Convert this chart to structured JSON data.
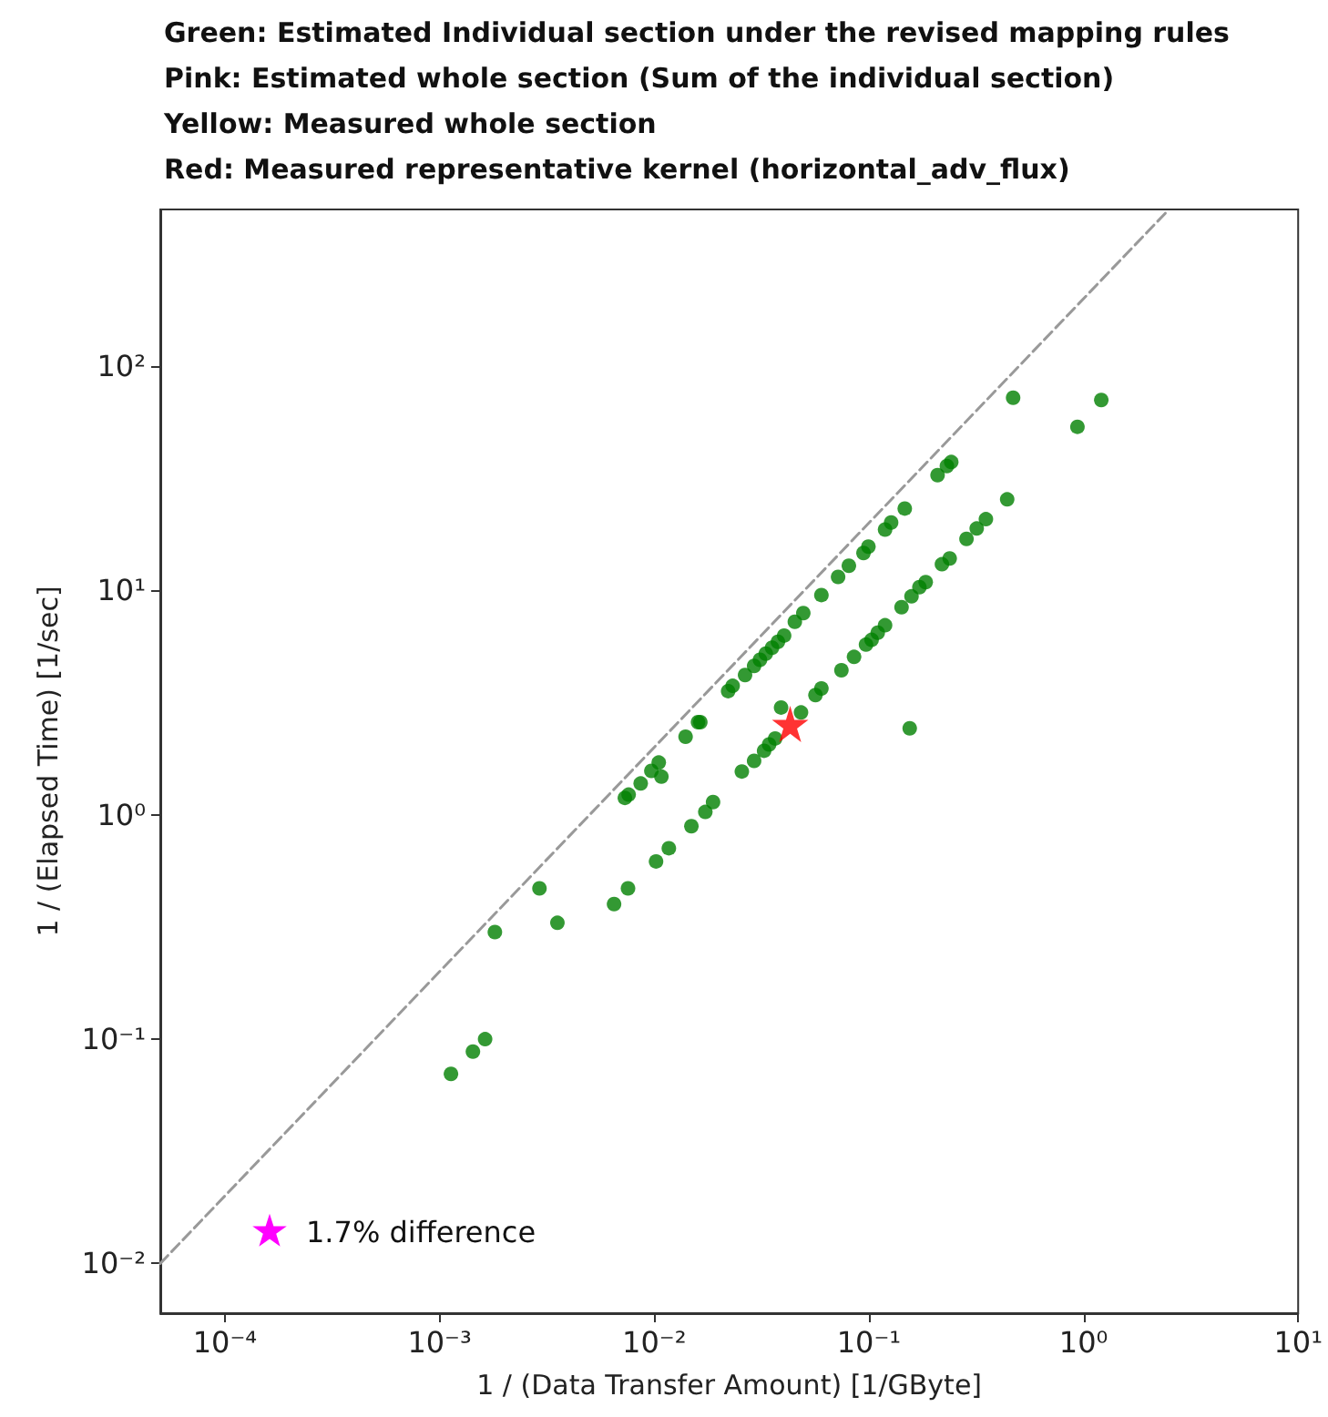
{
  "chart_data": {
    "type": "scatter",
    "xlabel": "1 / (Data Transfer Amount) [1/GByte]",
    "ylabel": "1 / (Elapsed Time) [1/sec]",
    "log": "xy",
    "xlim": [
      5e-05,
      10
    ],
    "ylim": [
      0.006,
      500
    ],
    "xticks": [
      {
        "value": 0.0001,
        "label": "10⁻⁴"
      },
      {
        "value": 0.001,
        "label": "10⁻³"
      },
      {
        "value": 0.01,
        "label": "10⁻²"
      },
      {
        "value": 0.1,
        "label": "10⁻¹"
      },
      {
        "value": 1,
        "label": "10⁰"
      },
      {
        "value": 10,
        "label": "10¹"
      }
    ],
    "yticks": [
      {
        "value": 0.01,
        "label": "10⁻²"
      },
      {
        "value": 0.1,
        "label": "10⁻¹"
      },
      {
        "value": 1,
        "label": "10⁰"
      },
      {
        "value": 10,
        "label": "10¹"
      },
      {
        "value": 100,
        "label": "10²"
      }
    ],
    "annotations": [
      "Green: Estimated Individual section under the revised mapping rules",
      "Pink: Estimated whole section (Sum of the individual section)",
      "Yellow: Measured whole section",
      "Red: Measured representative kernel (horizontal_adv_flux)",
      "1.7% difference"
    ],
    "series": [
      {
        "type": "line",
        "color": "#999999",
        "line_style": "dashed",
        "marker": "none",
        "x": [
          5e-05,
          2.5
        ],
        "values": [
          0.01,
          500
        ]
      },
      {
        "color": "#008000",
        "marker": "circle",
        "x": [
          0.00113,
          0.00143,
          0.00163,
          0.00181,
          0.00292,
          0.00354,
          0.0065,
          0.00755,
          0.0102,
          0.0117,
          0.0149,
          0.0173,
          0.0188,
          0.0256,
          0.0292,
          0.0325,
          0.0343,
          0.0366,
          0.039,
          0.0483,
          0.0073,
          0.0076,
          0.00865,
          0.0097,
          0.0105,
          0.0108,
          0.014,
          0.016,
          0.0164,
          0.0221,
          0.0232,
          0.0265,
          0.0292,
          0.0311,
          0.0331,
          0.0354,
          0.0377,
          0.0403,
          0.0452,
          0.0495,
          0.0601,
          0.0719,
          0.0807,
          0.0944,
          0.0995,
          0.119,
          0.127,
          0.147,
          0.209,
          0.231,
          0.242,
          0.47,
          0.937,
          1.21,
          0.0564,
          0.0601,
          0.0745,
          0.0853,
          0.097,
          0.103,
          0.11,
          0.119,
          0.142,
          0.158,
          0.172,
          0.184,
          0.219,
          0.238,
          0.285,
          0.318,
          0.351,
          0.441,
          0.155
        ],
        "values": [
          0.07,
          0.088,
          0.1,
          0.3,
          0.47,
          0.33,
          0.4,
          0.47,
          0.62,
          0.71,
          0.89,
          1.03,
          1.14,
          1.56,
          1.74,
          1.93,
          2.06,
          2.19,
          3.01,
          2.86,
          1.19,
          1.23,
          1.38,
          1.57,
          1.71,
          1.48,
          2.23,
          2.59,
          2.59,
          3.56,
          3.76,
          4.2,
          4.61,
          4.91,
          5.23,
          5.56,
          5.91,
          6.3,
          7.26,
          7.93,
          9.55,
          11.5,
          12.9,
          14.7,
          15.7,
          18.7,
          20.1,
          23.2,
          32.7,
          35.9,
          37.4,
          72.4,
          53.7,
          70.7,
          3.42,
          3.66,
          4.41,
          5.06,
          5.74,
          6.03,
          6.49,
          7.0,
          8.43,
          9.42,
          10.35,
          10.9,
          13.1,
          13.9,
          17.0,
          18.9,
          20.8,
          25.5,
          2.43
        ]
      },
      {
        "color": "#ff0000",
        "marker": "star",
        "x": [
          0.043
        ],
        "values": [
          2.54
        ]
      }
    ]
  }
}
